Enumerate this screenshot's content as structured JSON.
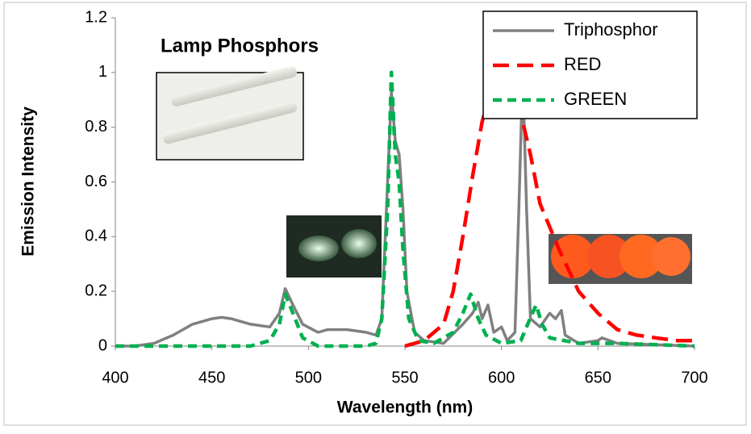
{
  "chart_data": {
    "type": "line",
    "title": "Lamp Phosphors",
    "x_label": "Wavelength (nm)",
    "y_label": "Emission Intensity",
    "xlim": [
      400,
      700
    ],
    "xticks": [
      400,
      450,
      500,
      550,
      600,
      650,
      700
    ],
    "ylim": [
      0,
      1.2
    ],
    "yticks": [
      0,
      0.2,
      0.4,
      0.6,
      0.8,
      1,
      1.2
    ],
    "grid": false,
    "legend": "upper right",
    "series": [
      {
        "name": "Triphosphor",
        "color": "#808080",
        "style": "solid",
        "x": [
          400,
          410,
          420,
          430,
          440,
          450,
          455,
          460,
          470,
          480,
          485,
          488,
          492,
          497,
          505,
          510,
          520,
          530,
          535,
          538,
          541,
          543,
          545,
          547,
          549,
          551,
          555,
          560,
          570,
          580,
          585,
          588,
          590,
          593,
          596,
          600,
          603,
          607,
          609,
          611,
          613,
          615,
          620,
          625,
          628,
          631,
          633,
          640,
          650,
          652,
          660,
          700
        ],
        "values": [
          0,
          0,
          0.01,
          0.04,
          0.08,
          0.1,
          0.105,
          0.1,
          0.08,
          0.07,
          0.12,
          0.21,
          0.15,
          0.08,
          0.05,
          0.06,
          0.06,
          0.05,
          0.04,
          0.1,
          0.6,
          0.93,
          0.75,
          0.7,
          0.5,
          0.2,
          0.05,
          0.02,
          0.01,
          0.08,
          0.12,
          0.16,
          0.1,
          0.15,
          0.05,
          0.07,
          0.02,
          0.05,
          0.5,
          1.0,
          0.5,
          0.1,
          0.07,
          0.12,
          0.1,
          0.13,
          0.04,
          0.01,
          0.02,
          0.03,
          0.01,
          0
        ]
      },
      {
        "name": "RED",
        "color": "#ff0000",
        "style": "dashed",
        "x": [
          550,
          560,
          570,
          575,
          580,
          585,
          590,
          595,
          600,
          605,
          610,
          615,
          620,
          630,
          640,
          650,
          660,
          670,
          680,
          690,
          700
        ],
        "values": [
          0,
          0.02,
          0.08,
          0.2,
          0.4,
          0.62,
          0.82,
          0.95,
          1.0,
          0.95,
          0.85,
          0.7,
          0.52,
          0.35,
          0.2,
          0.12,
          0.06,
          0.04,
          0.03,
          0.02,
          0.02
        ]
      },
      {
        "name": "GREEN",
        "color": "#00b050",
        "style": "dashed",
        "x": [
          400,
          420,
          470,
          480,
          485,
          488,
          492,
          497,
          505,
          530,
          535,
          538,
          541,
          543,
          545,
          547,
          549,
          552,
          557,
          565,
          575,
          580,
          584,
          588,
          592,
          600,
          610,
          616,
          618,
          621,
          625,
          640,
          660,
          700
        ],
        "values": [
          0,
          0,
          0,
          0.02,
          0.08,
          0.19,
          0.12,
          0.03,
          0,
          0,
          0.01,
          0.1,
          0.5,
          1.0,
          0.7,
          0.6,
          0.35,
          0.1,
          0.02,
          0.01,
          0.05,
          0.12,
          0.19,
          0.1,
          0.04,
          0.01,
          0.02,
          0.12,
          0.15,
          0.08,
          0.03,
          0.01,
          0.01,
          0
        ]
      }
    ]
  }
}
